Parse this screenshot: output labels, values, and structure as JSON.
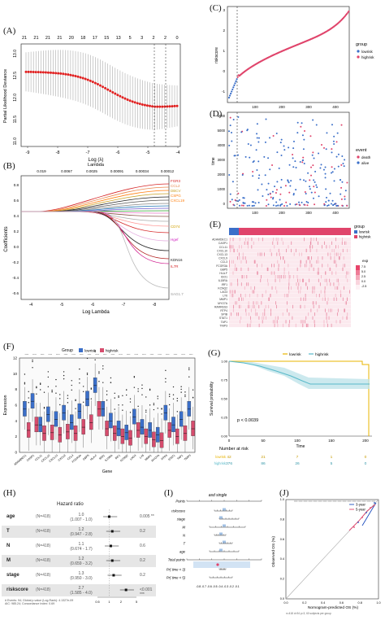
{
  "figure": {
    "panel_labels": [
      "(A)",
      "(B)",
      "(C)",
      "(D)",
      "(E)",
      "(F)",
      "(G)",
      "(H)",
      "(I)",
      "(J)"
    ],
    "colors": {
      "lowrisk": "#3b6fc9",
      "highrisk": "#e0446b",
      "gold": "#e8b400",
      "teal": "#58b9c9"
    }
  },
  "panel_a": {
    "top_ticks": [
      "21",
      "21",
      "21",
      "21",
      "20",
      "18",
      "17",
      "15",
      "13",
      "5",
      "3",
      "2",
      "2",
      "0"
    ],
    "ylabel": "Partial Likelihood Deviance",
    "xlabel": "Log (λ)",
    "x_ticks": [
      "-9",
      "-8",
      "-7",
      "-6",
      "-5",
      "-4"
    ],
    "y_ticks": [
      "11.0",
      "11.5",
      "12.0",
      "12.5",
      "13.0"
    ]
  },
  "panel_b": {
    "top_label": "Lambda",
    "top_ticks": [
      "0.019",
      "0.0067",
      "0.0025",
      "0.00091",
      "0.00034",
      "0.00012"
    ],
    "ylabel": "Coefficients",
    "xlabel": "Log Lambda",
    "x_ticks": [
      "-4",
      "-5",
      "-6",
      "-7",
      "-8"
    ],
    "y_ticks": [
      "-0.6",
      "-0.4",
      "-0.2",
      "0.0",
      "0.2",
      "0.4",
      "0.6",
      "0.8"
    ],
    "gene_labels_top": [
      "FGR3",
      "CCL2",
      "DBCV",
      "CSPG",
      "CXCL19"
    ],
    "gene_labels_mid": [
      "CD74",
      "Hgef"
    ],
    "gene_labels_bottom": [
      "KDN16",
      "IL7R",
      "SAG1.7"
    ]
  },
  "panel_c": {
    "ylabel": "riskscore",
    "x_ticks": [
      "100",
      "200",
      "300",
      "400"
    ],
    "y_ticks": [
      "-1",
      "0",
      "1",
      "2",
      "3"
    ],
    "legend_title": "group",
    "legend": [
      "lowrisk",
      "highrisk"
    ]
  },
  "panel_d": {
    "ylabel": "time",
    "x_ticks": [
      "100",
      "200",
      "300",
      "400"
    ],
    "y_ticks": [
      "0",
      "1000",
      "2000",
      "3000",
      "4000",
      "5000",
      "6000"
    ],
    "legend_title": "event",
    "legend": [
      "death",
      "alive"
    ]
  },
  "panel_e": {
    "legend_title": "group",
    "legend": [
      "lowrisk",
      "highrisk"
    ],
    "scale_title": "exp",
    "scale_ticks": [
      "7.5",
      "5.0",
      "2.5",
      "0.0",
      "-2.5"
    ],
    "genes": [
      "ADAMDEC1",
      "CASP1",
      "CCL11",
      "CXCL10",
      "CXCL13",
      "CXCL9",
      "CCL3",
      "FCGR3A",
      "GBP5",
      "HLA.F",
      "IDO1",
      "IL15RA",
      "IRF1",
      "KCNQ2",
      "LAG3",
      "LY6",
      "MMP1",
      "MYO7A",
      "RARRES3",
      "RTP4",
      "SPIB",
      "STAT1",
      "TAP1",
      "TNIP3"
    ]
  },
  "panel_f": {
    "legend_title": "Group",
    "legend": [
      "lowrisk",
      "highrisk"
    ],
    "ylabel": "Expression",
    "xlabel": "Gene",
    "y_ticks": [
      "0",
      "2",
      "4",
      "6",
      "8",
      "10",
      "12"
    ],
    "genes": [
      "ADAMDEC1",
      "CASP1",
      "CCL11",
      "CXCL10",
      "CXCL13",
      "CXCL9",
      "CCL3",
      "FCGR3A",
      "GBP5",
      "HLA.F",
      "IDO1",
      "IL15RA",
      "IRF1",
      "KCNQ2",
      "LAG3",
      "LY6",
      "MMP1",
      "MYO7A",
      "RTP4",
      "STAT1",
      "TAP1",
      "TNIP3"
    ],
    "low_medians": [
      5.5,
      6.5,
      3.5,
      4.8,
      4.2,
      5.0,
      3.8,
      5.2,
      6.8,
      8.5,
      5.5,
      4.0,
      3.0,
      2.5,
      4.5,
      3.2,
      2.8,
      2.2,
      5.0,
      3.5,
      4.2,
      5.5
    ],
    "high_medians": [
      2.8,
      3.5,
      2.4,
      2.5,
      2.2,
      2.6,
      2.4,
      3.2,
      3.8,
      5.5,
      3.0,
      2.4,
      2.0,
      1.8,
      2.8,
      2.0,
      1.6,
      1.5,
      2.8,
      2.0,
      2.4,
      3.0
    ]
  },
  "panel_g": {
    "legend": [
      "lowrisk",
      "highrisk"
    ],
    "ylabel": "Survival probability",
    "xlabel": "Time",
    "x_ticks": [
      "0",
      "50",
      "100",
      "150",
      "200"
    ],
    "y_ticks": [
      "0.00",
      "0.25",
      "0.50",
      "0.75",
      "1.00"
    ],
    "pvalue": "p < 0.0039",
    "risk_table_title": "Number at risk",
    "risk_rows": [
      {
        "label": "lowrisk",
        "values": [
          "42",
          "21",
          "7",
          "1",
          "0"
        ]
      },
      {
        "label": "highrisk",
        "values": [
          "376",
          "86",
          "26",
          "5",
          "0"
        ]
      }
    ]
  },
  "panel_h": {
    "title": "Hazard ratio",
    "rows": [
      {
        "var": "age",
        "n": "(N=418)",
        "hr": "1.0",
        "ci": "(1.007 - 1.0)",
        "p": "0.005 **"
      },
      {
        "var": "T",
        "n": "(N=418)",
        "hr": "1.2",
        "ci": "(0.947 - 2.8)",
        "p": "0.2"
      },
      {
        "var": "N",
        "n": "(N=418)",
        "hr": "1.1",
        "ci": "(0.674 - 1.7)",
        "p": "0.6"
      },
      {
        "var": "M",
        "n": "(N=418)",
        "hr": "1.2",
        "ci": "(0.659 - 3.2)",
        "p": "0.2"
      },
      {
        "var": "stage",
        "n": "(N=418)",
        "hr": "1.3",
        "ci": "(0.950 - 3.0)",
        "p": "0.2"
      },
      {
        "var": "riskscore",
        "n": "(N=418)",
        "hr": "2.7",
        "ci": "(1.585 - 4.0)",
        "p": "<0.001 ***"
      }
    ],
    "footer": "# Events: 94; Global p-value (Log-Rank): 4.1327e-09\nAIC: 985.24; Concordance Index: 0.69",
    "x_ticks": [
      "0.5",
      "1",
      "2",
      "5"
    ]
  },
  "panel_i": {
    "row_labels": [
      "Points",
      "riskscore",
      "stage",
      "M",
      "N",
      "T",
      "age",
      "Total points",
      "Pr( time < 3)",
      "Pr( time < 5)"
    ],
    "top_label": "asd single",
    "bottom_ticks": "-0.8 -0.7 -0.6 -0.5 -0.4 -0.3 -0.2 -0.1"
  },
  "panel_j": {
    "ylabel": "Observed OS (%)",
    "xlabel": "Nomogram-predicted OS (%)",
    "legend": [
      "3-year",
      "5-year"
    ],
    "x_ticks": [
      "0.0",
      "0.2",
      "0.4",
      "0.6",
      "0.8",
      "1.0"
    ],
    "y_ticks": [
      "0.0",
      "0.2",
      "0.4",
      "0.6",
      "0.8",
      "1.0"
    ],
    "footer": "n=418 d=94 p=3, 60 subjects per group"
  }
}
